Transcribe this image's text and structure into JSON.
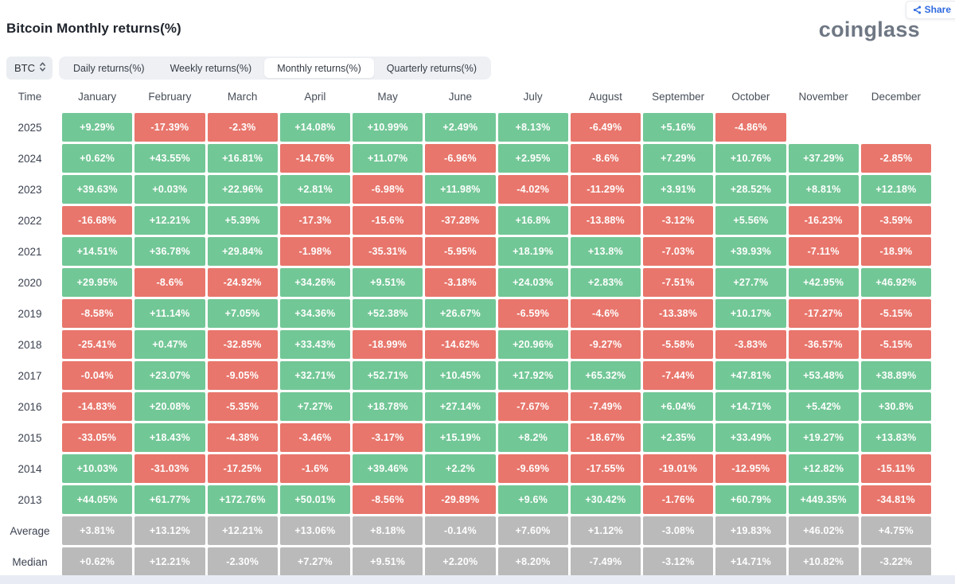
{
  "header": {
    "title": "Bitcoin Monthly returns(%)",
    "logo": "coinglass",
    "share_label": "Share"
  },
  "controls": {
    "coin_selector": {
      "value": "BTC"
    },
    "tabs": [
      {
        "label": "Daily returns(%)",
        "active": false
      },
      {
        "label": "Weekly returns(%)",
        "active": false
      },
      {
        "label": "Monthly returns(%)",
        "active": true
      },
      {
        "label": "Quarterly returns(%)",
        "active": false
      }
    ]
  },
  "colors": {
    "positive": "#72c796",
    "negative": "#e8766c",
    "aggregate": "#bababa",
    "share_blue": "#2f6ae0"
  },
  "chart_data": {
    "type": "heatmap",
    "title": "Bitcoin Monthly returns(%)",
    "time_label": "Time",
    "months": [
      "January",
      "February",
      "March",
      "April",
      "May",
      "June",
      "July",
      "August",
      "September",
      "October",
      "November",
      "December"
    ],
    "rows": [
      {
        "label": "2025",
        "cells": [
          [
            "+9.29%",
            "g"
          ],
          [
            "-17.39%",
            "r"
          ],
          [
            "-2.3%",
            "r"
          ],
          [
            "+14.08%",
            "g"
          ],
          [
            "+10.99%",
            "g"
          ],
          [
            "+2.49%",
            "g"
          ],
          [
            "+8.13%",
            "g"
          ],
          [
            "-6.49%",
            "r"
          ],
          [
            "+5.16%",
            "g"
          ],
          [
            "-4.86%",
            "r"
          ],
          [
            "",
            ""
          ],
          [
            "",
            ""
          ]
        ]
      },
      {
        "label": "2024",
        "cells": [
          [
            "+0.62%",
            "g"
          ],
          [
            "+43.55%",
            "g"
          ],
          [
            "+16.81%",
            "g"
          ],
          [
            "-14.76%",
            "r"
          ],
          [
            "+11.07%",
            "g"
          ],
          [
            "-6.96%",
            "r"
          ],
          [
            "+2.95%",
            "g"
          ],
          [
            "-8.6%",
            "r"
          ],
          [
            "+7.29%",
            "g"
          ],
          [
            "+10.76%",
            "g"
          ],
          [
            "+37.29%",
            "g"
          ],
          [
            "-2.85%",
            "r"
          ]
        ]
      },
      {
        "label": "2023",
        "cells": [
          [
            "+39.63%",
            "g"
          ],
          [
            "+0.03%",
            "g"
          ],
          [
            "+22.96%",
            "g"
          ],
          [
            "+2.81%",
            "g"
          ],
          [
            "-6.98%",
            "r"
          ],
          [
            "+11.98%",
            "g"
          ],
          [
            "-4.02%",
            "r"
          ],
          [
            "-11.29%",
            "r"
          ],
          [
            "+3.91%",
            "g"
          ],
          [
            "+28.52%",
            "g"
          ],
          [
            "+8.81%",
            "g"
          ],
          [
            "+12.18%",
            "g"
          ]
        ]
      },
      {
        "label": "2022",
        "cells": [
          [
            "-16.68%",
            "r"
          ],
          [
            "+12.21%",
            "g"
          ],
          [
            "+5.39%",
            "g"
          ],
          [
            "-17.3%",
            "r"
          ],
          [
            "-15.6%",
            "r"
          ],
          [
            "-37.28%",
            "r"
          ],
          [
            "+16.8%",
            "g"
          ],
          [
            "-13.88%",
            "r"
          ],
          [
            "-3.12%",
            "r"
          ],
          [
            "+5.56%",
            "g"
          ],
          [
            "-16.23%",
            "r"
          ],
          [
            "-3.59%",
            "r"
          ]
        ]
      },
      {
        "label": "2021",
        "cells": [
          [
            "+14.51%",
            "g"
          ],
          [
            "+36.78%",
            "g"
          ],
          [
            "+29.84%",
            "g"
          ],
          [
            "-1.98%",
            "r"
          ],
          [
            "-35.31%",
            "r"
          ],
          [
            "-5.95%",
            "r"
          ],
          [
            "+18.19%",
            "g"
          ],
          [
            "+13.8%",
            "g"
          ],
          [
            "-7.03%",
            "r"
          ],
          [
            "+39.93%",
            "g"
          ],
          [
            "-7.11%",
            "r"
          ],
          [
            "-18.9%",
            "r"
          ]
        ]
      },
      {
        "label": "2020",
        "cells": [
          [
            "+29.95%",
            "g"
          ],
          [
            "-8.6%",
            "r"
          ],
          [
            "-24.92%",
            "r"
          ],
          [
            "+34.26%",
            "g"
          ],
          [
            "+9.51%",
            "g"
          ],
          [
            "-3.18%",
            "r"
          ],
          [
            "+24.03%",
            "g"
          ],
          [
            "+2.83%",
            "g"
          ],
          [
            "-7.51%",
            "r"
          ],
          [
            "+27.7%",
            "g"
          ],
          [
            "+42.95%",
            "g"
          ],
          [
            "+46.92%",
            "g"
          ]
        ]
      },
      {
        "label": "2019",
        "cells": [
          [
            "-8.58%",
            "r"
          ],
          [
            "+11.14%",
            "g"
          ],
          [
            "+7.05%",
            "g"
          ],
          [
            "+34.36%",
            "g"
          ],
          [
            "+52.38%",
            "g"
          ],
          [
            "+26.67%",
            "g"
          ],
          [
            "-6.59%",
            "r"
          ],
          [
            "-4.6%",
            "r"
          ],
          [
            "-13.38%",
            "r"
          ],
          [
            "+10.17%",
            "g"
          ],
          [
            "-17.27%",
            "r"
          ],
          [
            "-5.15%",
            "r"
          ]
        ]
      },
      {
        "label": "2018",
        "cells": [
          [
            "-25.41%",
            "r"
          ],
          [
            "+0.47%",
            "g"
          ],
          [
            "-32.85%",
            "r"
          ],
          [
            "+33.43%",
            "g"
          ],
          [
            "-18.99%",
            "r"
          ],
          [
            "-14.62%",
            "r"
          ],
          [
            "+20.96%",
            "g"
          ],
          [
            "-9.27%",
            "r"
          ],
          [
            "-5.58%",
            "r"
          ],
          [
            "-3.83%",
            "r"
          ],
          [
            "-36.57%",
            "r"
          ],
          [
            "-5.15%",
            "r"
          ]
        ]
      },
      {
        "label": "2017",
        "cells": [
          [
            "-0.04%",
            "r"
          ],
          [
            "+23.07%",
            "g"
          ],
          [
            "-9.05%",
            "r"
          ],
          [
            "+32.71%",
            "g"
          ],
          [
            "+52.71%",
            "g"
          ],
          [
            "+10.45%",
            "g"
          ],
          [
            "+17.92%",
            "g"
          ],
          [
            "+65.32%",
            "g"
          ],
          [
            "-7.44%",
            "r"
          ],
          [
            "+47.81%",
            "g"
          ],
          [
            "+53.48%",
            "g"
          ],
          [
            "+38.89%",
            "g"
          ]
        ]
      },
      {
        "label": "2016",
        "cells": [
          [
            "-14.83%",
            "r"
          ],
          [
            "+20.08%",
            "g"
          ],
          [
            "-5.35%",
            "r"
          ],
          [
            "+7.27%",
            "g"
          ],
          [
            "+18.78%",
            "g"
          ],
          [
            "+27.14%",
            "g"
          ],
          [
            "-7.67%",
            "r"
          ],
          [
            "-7.49%",
            "r"
          ],
          [
            "+6.04%",
            "g"
          ],
          [
            "+14.71%",
            "g"
          ],
          [
            "+5.42%",
            "g"
          ],
          [
            "+30.8%",
            "g"
          ]
        ]
      },
      {
        "label": "2015",
        "cells": [
          [
            "-33.05%",
            "r"
          ],
          [
            "+18.43%",
            "g"
          ],
          [
            "-4.38%",
            "r"
          ],
          [
            "-3.46%",
            "r"
          ],
          [
            "-3.17%",
            "r"
          ],
          [
            "+15.19%",
            "g"
          ],
          [
            "+8.2%",
            "g"
          ],
          [
            "-18.67%",
            "r"
          ],
          [
            "+2.35%",
            "g"
          ],
          [
            "+33.49%",
            "g"
          ],
          [
            "+19.27%",
            "g"
          ],
          [
            "+13.83%",
            "g"
          ]
        ]
      },
      {
        "label": "2014",
        "cells": [
          [
            "+10.03%",
            "g"
          ],
          [
            "-31.03%",
            "r"
          ],
          [
            "-17.25%",
            "r"
          ],
          [
            "-1.6%",
            "r"
          ],
          [
            "+39.46%",
            "g"
          ],
          [
            "+2.2%",
            "g"
          ],
          [
            "-9.69%",
            "r"
          ],
          [
            "-17.55%",
            "r"
          ],
          [
            "-19.01%",
            "r"
          ],
          [
            "-12.95%",
            "r"
          ],
          [
            "+12.82%",
            "g"
          ],
          [
            "-15.11%",
            "r"
          ]
        ]
      },
      {
        "label": "2013",
        "cells": [
          [
            "+44.05%",
            "g"
          ],
          [
            "+61.77%",
            "g"
          ],
          [
            "+172.76%",
            "g"
          ],
          [
            "+50.01%",
            "g"
          ],
          [
            "-8.56%",
            "r"
          ],
          [
            "-29.89%",
            "r"
          ],
          [
            "+9.6%",
            "g"
          ],
          [
            "+30.42%",
            "g"
          ],
          [
            "-1.76%",
            "r"
          ],
          [
            "+60.79%",
            "g"
          ],
          [
            "+449.35%",
            "g"
          ],
          [
            "-34.81%",
            "r"
          ]
        ]
      },
      {
        "label": "Average",
        "cells": [
          [
            "+3.81%",
            "y"
          ],
          [
            "+13.12%",
            "y"
          ],
          [
            "+12.21%",
            "y"
          ],
          [
            "+13.06%",
            "y"
          ],
          [
            "+8.18%",
            "y"
          ],
          [
            "-0.14%",
            "y"
          ],
          [
            "+7.60%",
            "y"
          ],
          [
            "+1.12%",
            "y"
          ],
          [
            "-3.08%",
            "y"
          ],
          [
            "+19.83%",
            "y"
          ],
          [
            "+46.02%",
            "y"
          ],
          [
            "+4.75%",
            "y"
          ]
        ]
      },
      {
        "label": "Median",
        "cells": [
          [
            "+0.62%",
            "y"
          ],
          [
            "+12.21%",
            "y"
          ],
          [
            "-2.30%",
            "y"
          ],
          [
            "+7.27%",
            "y"
          ],
          [
            "+9.51%",
            "y"
          ],
          [
            "+2.20%",
            "y"
          ],
          [
            "+8.20%",
            "y"
          ],
          [
            "-7.49%",
            "y"
          ],
          [
            "-3.12%",
            "y"
          ],
          [
            "+14.71%",
            "y"
          ],
          [
            "+10.82%",
            "y"
          ],
          [
            "-3.22%",
            "y"
          ]
        ]
      }
    ]
  }
}
